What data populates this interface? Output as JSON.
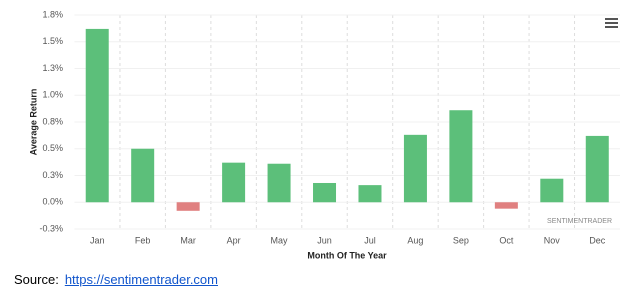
{
  "chart_data": {
    "type": "bar",
    "y_axis_label": "Average Return",
    "x_axis_label": "Month Of The Year",
    "watermark": "SENTIMENTRADER",
    "categories": [
      "Jan",
      "Feb",
      "Mar",
      "Apr",
      "May",
      "Jun",
      "Jul",
      "Aug",
      "Sep",
      "Oct",
      "Nov",
      "Dec"
    ],
    "values": [
      1.62,
      0.5,
      -0.08,
      0.37,
      0.36,
      0.18,
      0.16,
      0.63,
      0.86,
      -0.06,
      0.22,
      0.62
    ],
    "positive_color": "#5cbf7a",
    "negative_color": "#e08080",
    "ylim": [
      -0.25,
      1.75
    ],
    "yticks": [
      {
        "value": -0.25,
        "label": "-0.3%"
      },
      {
        "value": 0,
        "label": "0.0%"
      },
      {
        "value": 0.25,
        "label": "0.3%"
      },
      {
        "value": 0.5,
        "label": "0.5%"
      },
      {
        "value": 0.75,
        "label": "0.8%"
      },
      {
        "value": 1.0,
        "label": "1.0%"
      },
      {
        "value": 1.25,
        "label": "1.3%"
      },
      {
        "value": 1.5,
        "label": "1.5%"
      },
      {
        "value": 1.75,
        "label": "1.8%"
      }
    ],
    "grid": true
  },
  "source": {
    "label": "Source:",
    "link": "https://sentimentrader.com"
  }
}
